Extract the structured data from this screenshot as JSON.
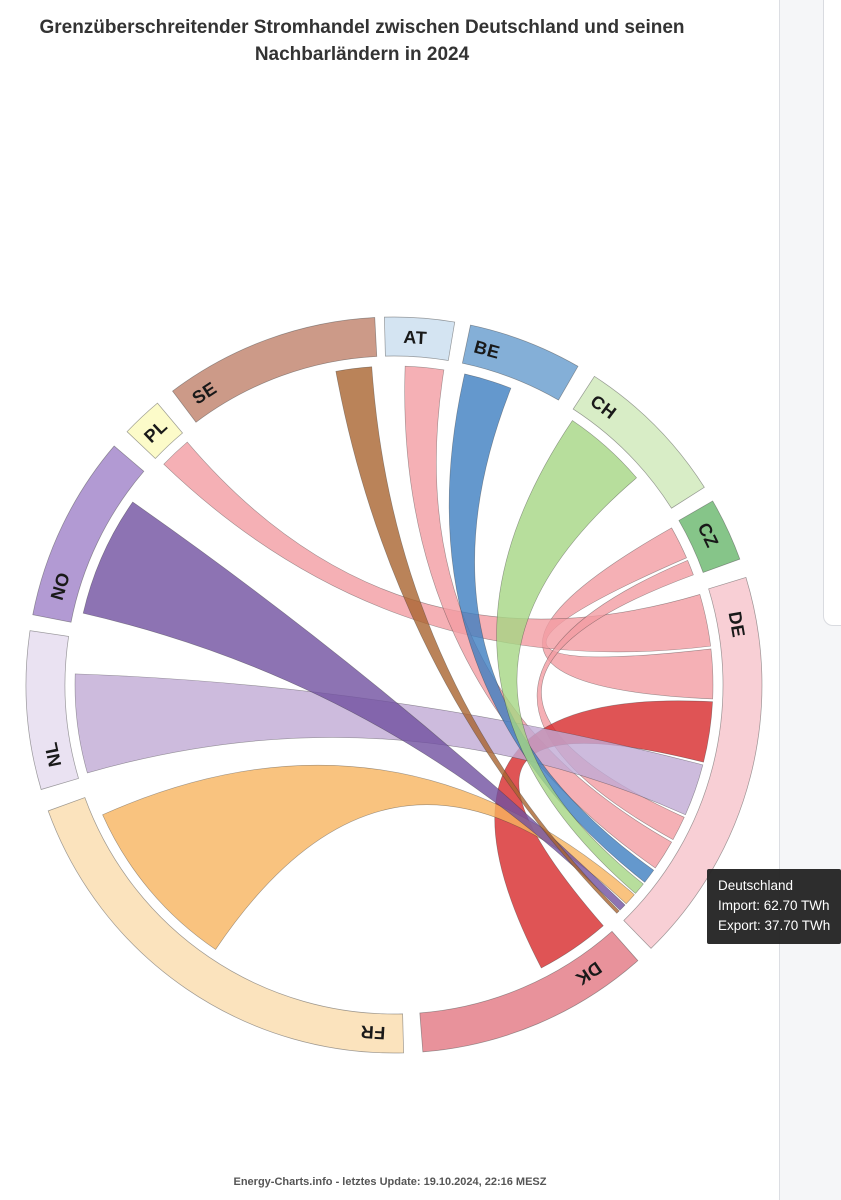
{
  "page": {
    "title_line1": "Grenzüberschreitender Stromhandel zwischen Deutschland und seinen",
    "title_line2": "Nachbarländern in 2024",
    "footer": "Energy-Charts.info - letztes Update: 19.10.2024, 22:16 MESZ"
  },
  "tooltip": {
    "lines": [
      "Deutschland",
      "Import: 62.70 TWh",
      "Export: 37.70 TWh"
    ],
    "background": "#262626",
    "text_color": "#ffffff"
  },
  "chart_data": {
    "type": "chord",
    "title": "Grenzüberschreitender Stromhandel zwischen Deutschland und seinen Nachbarländern in 2024",
    "unit": "TWh",
    "focus_country": "DE",
    "de_total_import_twh": 62.7,
    "de_total_export_twh": 37.7,
    "center": [
      394,
      685
    ],
    "outer_radius": 368,
    "inner_radius": 329,
    "ribbon_radius": 319,
    "label_radius": 348,
    "ribbon_opacity": 0.8,
    "arc_stroke": "rgba(80,80,80,0.55)",
    "ribbon_stroke": "rgba(50,50,50,0.45)",
    "label_color": "#191919",
    "nodes": [
      {
        "code": "AT",
        "label": "AT",
        "start": -1.5,
        "end": 9.5,
        "label_angle": 3.5,
        "arc_color": "#d4e4f2"
      },
      {
        "code": "BE",
        "label": "BE",
        "start": 12,
        "end": 30,
        "label_angle": 15.5,
        "arc_color": "#84afd7"
      },
      {
        "code": "CH",
        "label": "CH",
        "start": 33,
        "end": 57.5,
        "label_angle": 37,
        "arc_color": "#d8edc6"
      },
      {
        "code": "CZ",
        "label": "CZ",
        "start": 60,
        "end": 70,
        "label_angle": 64.5,
        "arc_color": "#86c589"
      },
      {
        "code": "DE",
        "label": "DE",
        "start": 73,
        "end": 135.7,
        "label_angle": 80,
        "arc_color": "#f8cfd5"
      },
      {
        "code": "DK",
        "label": "DK",
        "start": 138.5,
        "end": 175.5,
        "label_angle": 146,
        "arc_color": "#e8929b"
      },
      {
        "code": "FR",
        "label": "FR",
        "start": 178.5,
        "end": 250,
        "label_angle": 183.5,
        "arc_color": "#fbe3bd"
      },
      {
        "code": "NL",
        "label": "NL",
        "start": 253.5,
        "end": 278.5,
        "label_angle": 258.5,
        "arc_color": "#eae2f2"
      },
      {
        "code": "NO",
        "label": "NO",
        "start": 281,
        "end": 310.5,
        "label_angle": 286.5,
        "arc_color": "#b29ad3"
      },
      {
        "code": "PL",
        "label": "PL",
        "start": 313.5,
        "end": 320,
        "label_angle": 316.8,
        "arc_color": "#fcfbc9"
      },
      {
        "code": "SE",
        "label": "SE",
        "start": 323,
        "end": 357,
        "label_angle": 327,
        "arc_color": "#cc9a88"
      }
    ],
    "ribbons": [
      {
        "source": "CZ",
        "target": "DE",
        "s": [
          60.5,
          66.5
        ],
        "t": [
          83.5,
          92.5
        ],
        "color": "#f39ca2"
      },
      {
        "source": "PL",
        "target": "DE",
        "s": [
          313.8,
          319.6
        ],
        "t": [
          73.5,
          83
        ],
        "color": "#f39ca2"
      },
      {
        "source": "AT",
        "target": "DE",
        "s": [
          2,
          9
        ],
        "t": [
          119.5,
          125
        ],
        "color": "#f39ca2"
      },
      {
        "source": "CZ",
        "target": "DE",
        "s": [
          67,
          69.8
        ],
        "t": [
          114.5,
          119
        ],
        "color": "#f39ca2"
      },
      {
        "source": "DK",
        "target": "DE",
        "s": [
          139,
          152.5
        ],
        "t": [
          93,
          104
        ],
        "color": "#d7292a"
      },
      {
        "source": "NL",
        "target": "DE",
        "s": [
          254,
          272
        ],
        "t": [
          104.5,
          114
        ],
        "color": "#c1aad5"
      },
      {
        "source": "BE",
        "target": "DE",
        "s": [
          12.8,
          21.5
        ],
        "t": [
          125.5,
          128.2
        ],
        "color": "#3d7ec0"
      },
      {
        "source": "CH",
        "target": "DE",
        "s": [
          34,
          49.5
        ],
        "t": [
          128.6,
          130.8
        ],
        "color": "#a5d683"
      },
      {
        "source": "FR",
        "target": "DE",
        "s": [
          214,
          246
        ],
        "t": [
          131.1,
          133.3
        ],
        "color": "#f7b45f"
      },
      {
        "source": "NO",
        "target": "DE",
        "s": [
          283,
          305
        ],
        "t": [
          133.6,
          134.9
        ],
        "color": "#7150a0"
      },
      {
        "source": "SE",
        "target": "DE",
        "s": [
          349.5,
          356
        ],
        "t": [
          135.1,
          135.7
        ],
        "color": "#a9642f"
      }
    ]
  }
}
